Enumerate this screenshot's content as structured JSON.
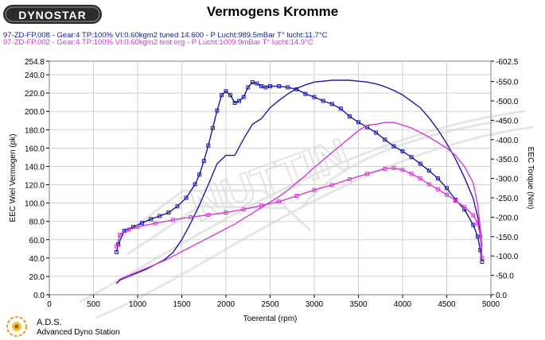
{
  "header": {
    "title": "Vermogens Kromme",
    "brand": "DYNOSTAR",
    "run1": "97-ZD-FP.008 - Gear:4 TP:100% VI:0.60kgm2 tuned 14.600  - P Lucht:989.5mBar T° lucht:11.7°C",
    "run2": "97-ZD-FP.002 - Gear:4 TP:100% VI:0.60kgm2 test org  - P Lucht:1009.9mBar T° lucht:14.9°C"
  },
  "footer": {
    "title": "A.D.S.",
    "subtitle": "Advanced Dyno Station"
  },
  "colors": {
    "tuned": "#1a1aa6",
    "original": "#d63ad6",
    "grid": "#d0d0d0",
    "watermark": "#e8e8e8"
  },
  "chart_data": {
    "type": "line",
    "title": "Vermogens Kromme",
    "xlabel": "Toerental (rpm)",
    "ylabel": "EEC Wiel Vermogen (pk)",
    "y2label": "EEC Torque (Nm)",
    "xlim": [
      0,
      5000
    ],
    "ylim": [
      0,
      254.8
    ],
    "y2lim": [
      0,
      -602.5
    ],
    "x_ticks": [
      "0",
      "500",
      "1000",
      "1500",
      "2000",
      "2500",
      "3000",
      "3500",
      "4000",
      "4500",
      "5000"
    ],
    "y_ticks": [
      "254.8",
      "240.0",
      "220.0",
      "200.0",
      "180.0",
      "160.0",
      "140.0",
      "120.0",
      "100.0",
      "80.0",
      "60.0",
      "40.0",
      "20.0",
      "0.0"
    ],
    "y2_ticks": [
      "-602.5",
      "-550.0",
      "-500.0",
      "-450.0",
      "-400.0",
      "-350.0",
      "-300.0",
      "-250.0",
      "-200.0",
      "-150.0",
      "-100.0",
      "-50.0",
      "0.0"
    ],
    "grid": true,
    "series": [
      {
        "run": "tuned",
        "quantity": "torque",
        "axis": "right",
        "color": "#1a1aa6",
        "markers": true,
        "x": [
          760,
          780,
          850,
          950,
          1050,
          1150,
          1250,
          1350,
          1450,
          1550,
          1650,
          1700,
          1750,
          1800,
          1850,
          1900,
          1950,
          2000,
          2050,
          2100,
          2150,
          2200,
          2250,
          2300,
          2350,
          2400,
          2450,
          2500,
          2600,
          2700,
          2800,
          2900,
          3000,
          3100,
          3200,
          3300,
          3400,
          3500,
          3600,
          3700,
          3800,
          3900,
          4000,
          4100,
          4200,
          4300,
          4400,
          4500,
          4600,
          4700,
          4800,
          4850,
          4880,
          4900
        ],
        "y": [
          -110,
          -130,
          -165,
          -175,
          -185,
          -195,
          -203,
          -212,
          -228,
          -250,
          -285,
          -310,
          -345,
          -385,
          -430,
          -475,
          -515,
          -525,
          -515,
          -495,
          -500,
          -510,
          -535,
          -548,
          -545,
          -538,
          -535,
          -538,
          -538,
          -535,
          -530,
          -518,
          -510,
          -500,
          -492,
          -480,
          -460,
          -445,
          -432,
          -418,
          -400,
          -383,
          -370,
          -355,
          -338,
          -320,
          -300,
          -275,
          -245,
          -220,
          -180,
          -150,
          -115,
          -85
        ]
      },
      {
        "run": "tuned",
        "quantity": "power",
        "axis": "left",
        "color": "#1a1aa6",
        "markers": false,
        "x": [
          760,
          800,
          900,
          1000,
          1100,
          1200,
          1300,
          1400,
          1500,
          1600,
          1700,
          1800,
          1900,
          2000,
          2100,
          2200,
          2300,
          2400,
          2500,
          2600,
          2700,
          2800,
          2900,
          3000,
          3100,
          3200,
          3300,
          3400,
          3500,
          3600,
          3700,
          3800,
          3900,
          4000,
          4100,
          4200,
          4300,
          4400,
          4500,
          4600,
          4700,
          4800,
          4850,
          4880,
          4900
        ],
        "y": [
          12,
          16,
          20,
          24,
          28,
          33,
          38,
          46,
          60,
          78,
          98,
          120,
          143,
          152,
          152,
          170,
          186,
          192,
          204,
          212,
          219,
          225,
          229,
          232,
          233,
          234,
          234,
          234,
          233,
          232,
          230,
          227,
          223,
          218,
          211,
          204,
          193,
          180,
          165,
          148,
          128,
          105,
          85,
          68,
          52
        ]
      },
      {
        "run": "original",
        "quantity": "torque",
        "axis": "right",
        "color": "#d63ad6",
        "markers": true,
        "x": [
          760,
          800,
          900,
          1000,
          1200,
          1400,
          1600,
          1800,
          2000,
          2200,
          2400,
          2600,
          2800,
          3000,
          3200,
          3400,
          3600,
          3800,
          3900,
          4000,
          4100,
          4200,
          4300,
          4400,
          4500,
          4600,
          4700,
          4800,
          4850,
          4880,
          4900
        ],
        "y": [
          -125,
          -155,
          -168,
          -175,
          -184,
          -193,
          -200,
          -206,
          -212,
          -220,
          -230,
          -240,
          -255,
          -270,
          -283,
          -298,
          -312,
          -325,
          -327,
          -322,
          -312,
          -300,
          -285,
          -272,
          -258,
          -243,
          -226,
          -205,
          -185,
          -150,
          -95
        ]
      },
      {
        "run": "original",
        "quantity": "power",
        "axis": "left",
        "color": "#d63ad6",
        "markers": false,
        "x": [
          760,
          800,
          900,
          1000,
          1100,
          1200,
          1300,
          1400,
          1500,
          1600,
          1700,
          1800,
          1900,
          2000,
          2100,
          2200,
          2300,
          2400,
          2500,
          2600,
          2700,
          2800,
          2900,
          3000,
          3100,
          3200,
          3300,
          3400,
          3500,
          3600,
          3700,
          3800,
          3900,
          4000,
          4100,
          4200,
          4300,
          4400,
          4500,
          4600,
          4700,
          4800,
          4850,
          4880,
          4900
        ],
        "y": [
          13,
          17,
          21,
          25,
          29,
          33,
          37,
          42,
          47,
          52,
          57,
          62,
          67,
          72,
          77,
          83,
          89,
          95,
          101,
          107,
          114,
          122,
          130,
          139,
          147,
          155,
          163,
          171,
          179,
          185,
          186,
          188,
          188,
          185,
          182,
          177,
          172,
          166,
          160,
          152,
          140,
          122,
          98,
          73,
          52
        ]
      }
    ]
  }
}
